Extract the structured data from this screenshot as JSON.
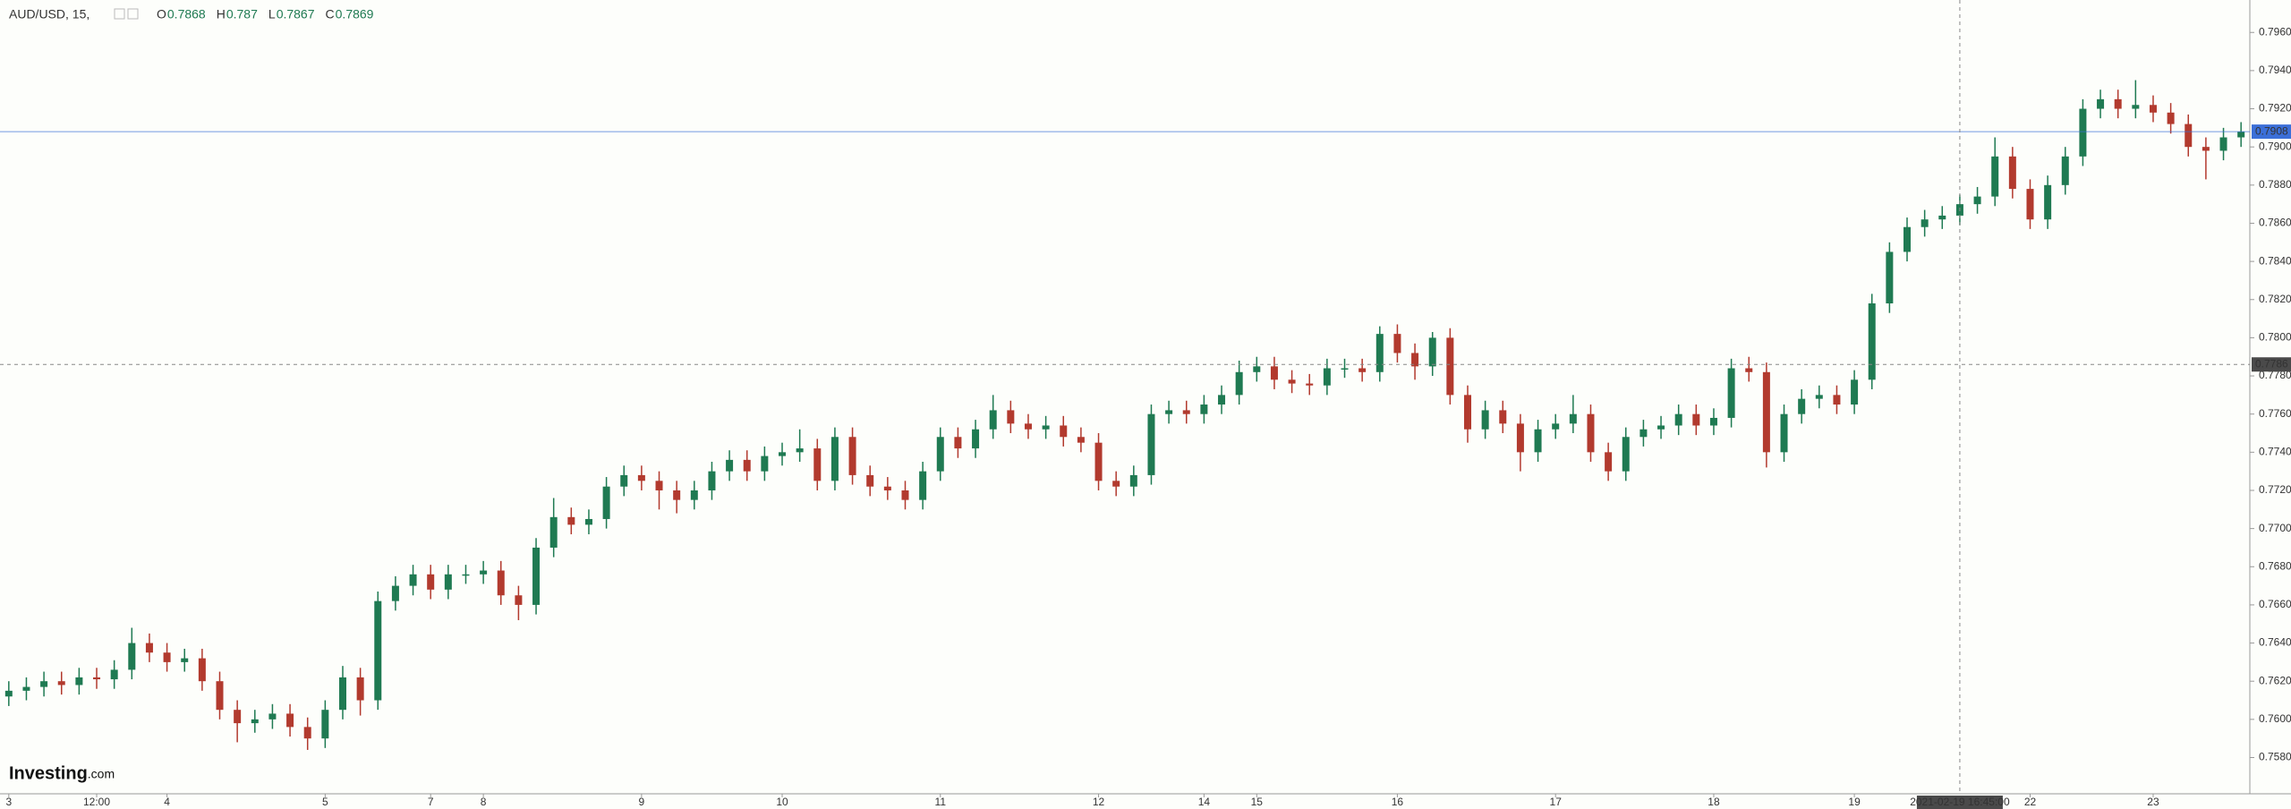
{
  "chart_data": {
    "type": "candlestick",
    "title": "AUD/USD, 15,",
    "legend_values": [
      {
        "key": "O",
        "value": 0.7868
      },
      {
        "key": "H",
        "value": 0.787
      },
      {
        "key": "L",
        "value": 0.7867
      },
      {
        "key": "C",
        "value": 0.7869
      }
    ],
    "brand": "Investing",
    "brand_suffix": ".com",
    "up_color": "#1f7a52",
    "down_color": "#b23a2e",
    "current_price": {
      "value": 0.7908,
      "color": "#3b6fd8"
    },
    "crosshair": {
      "price": 0.7786,
      "time": "2021-02-19 16:45:00"
    },
    "ylim": [
      0.7561,
      0.7977
    ],
    "yticks": [
      {
        "value": 0.758,
        "label": "0.7580"
      },
      {
        "value": 0.76,
        "label": "0.7600"
      },
      {
        "value": 0.762,
        "label": "0.7620"
      },
      {
        "value": 0.764,
        "label": "0.7640"
      },
      {
        "value": 0.766,
        "label": "0.7660"
      },
      {
        "value": 0.768,
        "label": "0.7680"
      },
      {
        "value": 0.77,
        "label": "0.7700"
      },
      {
        "value": 0.772,
        "label": "0.7720"
      },
      {
        "value": 0.774,
        "label": "0.7740"
      },
      {
        "value": 0.776,
        "label": "0.7760"
      },
      {
        "value": 0.778,
        "label": "0.7780"
      },
      {
        "value": 0.78,
        "label": "0.7800"
      },
      {
        "value": 0.782,
        "label": "0.7820"
      },
      {
        "value": 0.784,
        "label": "0.7840"
      },
      {
        "value": 0.786,
        "label": "0.7860"
      },
      {
        "value": 0.788,
        "label": "0.7880"
      },
      {
        "value": 0.79,
        "label": "0.7900"
      },
      {
        "value": 0.792,
        "label": "0.7920"
      },
      {
        "value": 0.794,
        "label": "0.7940"
      },
      {
        "value": 0.796,
        "label": "0.7960"
      }
    ],
    "categories": [
      "3",
      null,
      null,
      null,
      null,
      "12:00",
      null,
      null,
      null,
      "4",
      null,
      null,
      null,
      null,
      null,
      null,
      null,
      null,
      "5",
      null,
      null,
      null,
      null,
      null,
      "7",
      null,
      null,
      "8",
      null,
      null,
      null,
      null,
      null,
      null,
      null,
      null,
      "9",
      null,
      null,
      null,
      null,
      null,
      null,
      null,
      "10",
      null,
      null,
      null,
      null,
      null,
      null,
      null,
      null,
      "11",
      null,
      null,
      null,
      null,
      null,
      null,
      null,
      null,
      "12",
      null,
      null,
      null,
      null,
      null,
      "14",
      null,
      null,
      "15",
      null,
      null,
      null,
      null,
      null,
      null,
      null,
      "16",
      null,
      null,
      null,
      null,
      null,
      null,
      null,
      null,
      "17",
      null,
      null,
      null,
      null,
      null,
      null,
      null,
      null,
      "18",
      null,
      null,
      null,
      null,
      null,
      null,
      null,
      "19",
      null,
      null,
      null,
      null,
      null,
      null,
      null,
      null,
      null,
      "22",
      null,
      null,
      null,
      null,
      null,
      null,
      "23",
      null,
      null,
      null,
      null,
      null
    ],
    "open": [
      0.7612,
      0.7615,
      0.7617,
      0.762,
      0.7618,
      0.7622,
      0.7621,
      0.7626,
      0.764,
      0.7635,
      0.763,
      0.7632,
      0.762,
      0.7605,
      0.7598,
      0.76,
      0.7603,
      0.7596,
      0.759,
      0.7605,
      0.7622,
      0.761,
      0.7662,
      0.767,
      0.7676,
      0.7668,
      0.7676,
      0.7676,
      0.7678,
      0.7665,
      0.766,
      0.769,
      0.7706,
      0.7702,
      0.7705,
      0.7722,
      0.7728,
      0.7725,
      0.772,
      0.7715,
      0.772,
      0.773,
      0.7736,
      0.773,
      0.7738,
      0.774,
      0.7742,
      0.7725,
      0.7748,
      0.7728,
      0.7722,
      0.772,
      0.7715,
      0.773,
      0.7748,
      0.7742,
      0.7752,
      0.7762,
      0.7755,
      0.7752,
      0.7754,
      0.7748,
      0.7745,
      0.7725,
      0.7722,
      0.7728,
      0.776,
      0.7762,
      0.776,
      0.7765,
      0.777,
      0.7782,
      0.7785,
      0.7778,
      0.7776,
      0.7775,
      0.7784,
      0.7784,
      0.7782,
      0.7802,
      0.7792,
      0.7785,
      0.78,
      0.777,
      0.7752,
      0.7762,
      0.7755,
      0.774,
      0.7752,
      0.7755,
      0.776,
      0.774,
      0.773,
      0.7748,
      0.7752,
      0.7754,
      0.776,
      0.7754,
      0.7758,
      0.7784,
      0.7782,
      0.774,
      0.776,
      0.7768,
      0.777,
      0.7765,
      0.7778,
      0.7818,
      0.7845,
      0.7858,
      0.7862,
      0.7864,
      0.787,
      0.7874,
      0.7895,
      0.7878,
      0.7862,
      0.788,
      0.7895,
      0.792,
      0.7925,
      0.792,
      0.7922,
      0.7918,
      0.7912,
      0.79,
      0.7898,
      0.7905
    ],
    "high": [
      0.762,
      0.7622,
      0.7625,
      0.7625,
      0.7627,
      0.7627,
      0.7631,
      0.7648,
      0.7645,
      0.764,
      0.7637,
      0.7637,
      0.7625,
      0.761,
      0.7605,
      0.7608,
      0.7608,
      0.7601,
      0.761,
      0.7628,
      0.7627,
      0.7667,
      0.7675,
      0.7681,
      0.7681,
      0.7681,
      0.7681,
      0.7683,
      0.7683,
      0.767,
      0.7695,
      0.7716,
      0.7711,
      0.771,
      0.7727,
      0.7733,
      0.7733,
      0.773,
      0.7725,
      0.7725,
      0.7735,
      0.7741,
      0.7741,
      0.7743,
      0.7745,
      0.7752,
      0.7747,
      0.7753,
      0.7753,
      0.7733,
      0.7727,
      0.7725,
      0.7735,
      0.7753,
      0.7753,
      0.7757,
      0.777,
      0.7767,
      0.776,
      0.7759,
      0.7759,
      0.7753,
      0.775,
      0.773,
      0.7733,
      0.7765,
      0.7767,
      0.7767,
      0.777,
      0.7775,
      0.7788,
      0.779,
      0.779,
      0.7783,
      0.7781,
      0.7789,
      0.7789,
      0.7789,
      0.7806,
      0.7807,
      0.7797,
      0.7803,
      0.7805,
      0.7775,
      0.7767,
      0.7767,
      0.776,
      0.7757,
      0.776,
      0.777,
      0.7765,
      0.7745,
      0.7753,
      0.7757,
      0.7759,
      0.7765,
      0.7765,
      0.7763,
      0.7789,
      0.779,
      0.7787,
      0.7765,
      0.7773,
      0.7775,
      0.7775,
      0.7783,
      0.7823,
      0.785,
      0.7863,
      0.7867,
      0.7869,
      0.7875,
      0.7879,
      0.7905,
      0.79,
      0.7883,
      0.7885,
      0.79,
      0.7925,
      0.793,
      0.793,
      0.7935,
      0.7927,
      0.7923,
      0.7917,
      0.7905,
      0.791,
      0.7913
    ],
    "low": [
      0.7607,
      0.761,
      0.7612,
      0.7613,
      0.7613,
      0.7616,
      0.7616,
      0.7621,
      0.763,
      0.7625,
      0.7625,
      0.7615,
      0.76,
      0.7588,
      0.7593,
      0.7595,
      0.7591,
      0.7584,
      0.7585,
      0.76,
      0.7602,
      0.7605,
      0.7657,
      0.7665,
      0.7663,
      0.7663,
      0.7671,
      0.7671,
      0.766,
      0.7652,
      0.7655,
      0.7685,
      0.7697,
      0.7697,
      0.77,
      0.7717,
      0.772,
      0.771,
      0.7708,
      0.771,
      0.7715,
      0.7725,
      0.7725,
      0.7725,
      0.7733,
      0.7735,
      0.772,
      0.772,
      0.7723,
      0.7717,
      0.7715,
      0.771,
      0.771,
      0.7725,
      0.7737,
      0.7737,
      0.7747,
      0.775,
      0.7747,
      0.7747,
      0.7743,
      0.774,
      0.772,
      0.7717,
      0.7717,
      0.7723,
      0.7755,
      0.7755,
      0.7755,
      0.776,
      0.7765,
      0.7777,
      0.7773,
      0.7771,
      0.777,
      0.777,
      0.7779,
      0.7777,
      0.7777,
      0.7787,
      0.7778,
      0.778,
      0.7765,
      0.7745,
      0.7747,
      0.775,
      0.773,
      0.7735,
      0.7747,
      0.775,
      0.7735,
      0.7725,
      0.7725,
      0.7743,
      0.7747,
      0.7749,
      0.7749,
      0.7749,
      0.7753,
      0.7777,
      0.7732,
      0.7735,
      0.7755,
      0.7763,
      0.776,
      0.776,
      0.7773,
      0.7813,
      0.784,
      0.7853,
      0.7857,
      0.7859,
      0.7865,
      0.7869,
      0.7873,
      0.7857,
      0.7857,
      0.7875,
      0.789,
      0.7915,
      0.7915,
      0.7915,
      0.7913,
      0.7907,
      0.7895,
      0.7883,
      0.7893,
      0.79
    ],
    "close": [
      0.7615,
      0.7617,
      0.762,
      0.7618,
      0.7622,
      0.7621,
      0.7626,
      0.764,
      0.7635,
      0.763,
      0.7632,
      0.762,
      0.7605,
      0.7598,
      0.76,
      0.7603,
      0.7596,
      0.759,
      0.7605,
      0.7622,
      0.761,
      0.7662,
      0.767,
      0.7676,
      0.7668,
      0.7676,
      0.7676,
      0.7678,
      0.7665,
      0.766,
      0.769,
      0.7706,
      0.7702,
      0.7705,
      0.7722,
      0.7728,
      0.7725,
      0.772,
      0.7715,
      0.772,
      0.773,
      0.7736,
      0.773,
      0.7738,
      0.774,
      0.7742,
      0.7725,
      0.7748,
      0.7728,
      0.7722,
      0.772,
      0.7715,
      0.773,
      0.7748,
      0.7742,
      0.7752,
      0.7762,
      0.7755,
      0.7752,
      0.7754,
      0.7748,
      0.7745,
      0.7725,
      0.7722,
      0.7728,
      0.776,
      0.7762,
      0.776,
      0.7765,
      0.777,
      0.7782,
      0.7785,
      0.7778,
      0.7776,
      0.7775,
      0.7784,
      0.7784,
      0.7782,
      0.7802,
      0.7792,
      0.7785,
      0.78,
      0.777,
      0.7752,
      0.7762,
      0.7755,
      0.774,
      0.7752,
      0.7755,
      0.776,
      0.774,
      0.773,
      0.7748,
      0.7752,
      0.7754,
      0.776,
      0.7754,
      0.7758,
      0.7784,
      0.7782,
      0.774,
      0.776,
      0.7768,
      0.777,
      0.7765,
      0.7778,
      0.7818,
      0.7845,
      0.7858,
      0.7862,
      0.7864,
      0.787,
      0.7874,
      0.7895,
      0.7878,
      0.7862,
      0.788,
      0.7895,
      0.792,
      0.7925,
      0.792,
      0.7922,
      0.7918,
      0.7912,
      0.79,
      0.7898,
      0.7905,
      0.7908
    ]
  }
}
